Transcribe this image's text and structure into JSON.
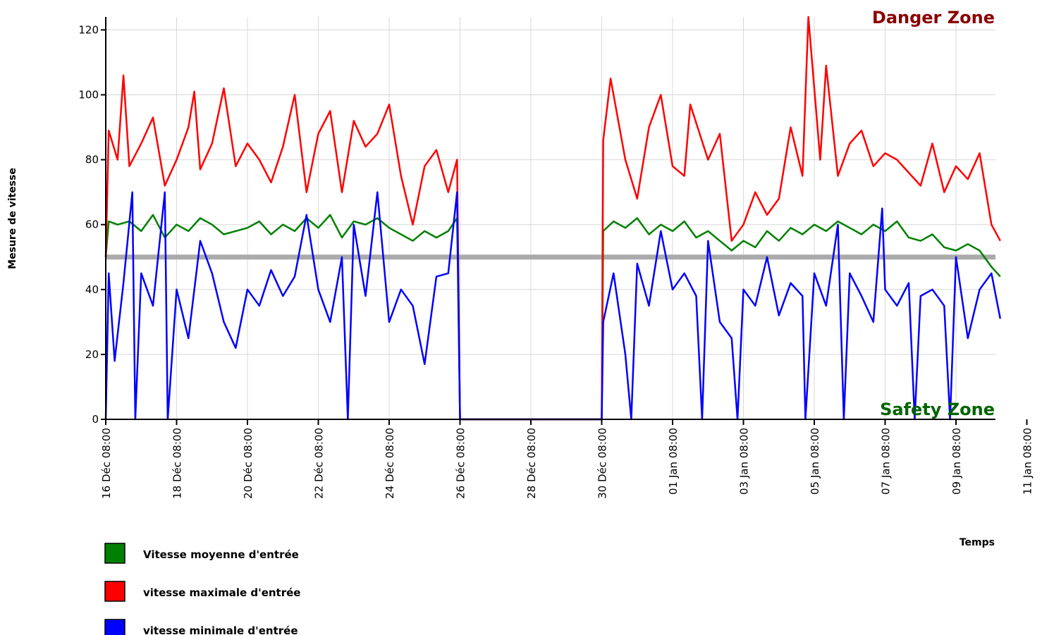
{
  "chart_data": {
    "type": "line",
    "xlabel": "Temps",
    "ylabel": "Mesure de vitesse",
    "ylim": [
      0,
      124
    ],
    "yticks": [
      0,
      20,
      40,
      60,
      80,
      100,
      120
    ],
    "xlim": [
      "2023-12-16 08:00",
      "2024-01-10 14:00"
    ],
    "xtick_labels": [
      "16 Déc 08:00",
      "18 Déc 08:00",
      "20 Déc 08:00",
      "22 Déc 08:00",
      "24 Déc 08:00",
      "26 Déc 08:00",
      "28 Déc 08:00",
      "30 Déc 08:00",
      "01 Jan 08:00",
      "03 Jan 08:00",
      "05 Jan 08:00",
      "07 Jan 08:00",
      "09 Jan 08:00",
      "11 Jan 08:00"
    ],
    "grid": true,
    "legend_position": "bottom-left",
    "reference_line": {
      "y": 50,
      "color": "#aaaaaa"
    },
    "zones": {
      "danger": "Danger Zone",
      "safety": "Safety Zone",
      "danger_color": "#8b0000",
      "safety_color": "#006400"
    },
    "series": [
      {
        "name": "Vitesse moyenne d'entrée",
        "color": "#008000",
        "points": [
          [
            "2023-12-16 08:00",
            50
          ],
          [
            "2023-12-16 10:00",
            61
          ],
          [
            "2023-12-16 16:00",
            60
          ],
          [
            "2023-12-17 00:00",
            61
          ],
          [
            "2023-12-17 08:00",
            58
          ],
          [
            "2023-12-17 16:00",
            63
          ],
          [
            "2023-12-18 00:00",
            56
          ],
          [
            "2023-12-18 08:00",
            60
          ],
          [
            "2023-12-18 16:00",
            58
          ],
          [
            "2023-12-19 00:00",
            62
          ],
          [
            "2023-12-19 08:00",
            60
          ],
          [
            "2023-12-19 16:00",
            57
          ],
          [
            "2023-12-20 00:00",
            58
          ],
          [
            "2023-12-20 08:00",
            59
          ],
          [
            "2023-12-20 16:00",
            61
          ],
          [
            "2023-12-21 00:00",
            57
          ],
          [
            "2023-12-21 08:00",
            60
          ],
          [
            "2023-12-21 16:00",
            58
          ],
          [
            "2023-12-22 00:00",
            62
          ],
          [
            "2023-12-22 08:00",
            59
          ],
          [
            "2023-12-22 16:00",
            63
          ],
          [
            "2023-12-23 00:00",
            56
          ],
          [
            "2023-12-23 08:00",
            61
          ],
          [
            "2023-12-23 16:00",
            60
          ],
          [
            "2023-12-24 00:00",
            62
          ],
          [
            "2023-12-24 08:00",
            59
          ],
          [
            "2023-12-24 16:00",
            57
          ],
          [
            "2023-12-25 00:00",
            55
          ],
          [
            "2023-12-25 08:00",
            58
          ],
          [
            "2023-12-25 16:00",
            56
          ],
          [
            "2023-12-26 00:00",
            58
          ],
          [
            "2023-12-26 06:00",
            62
          ],
          [
            "2023-12-26 08:00",
            0
          ],
          [
            "2023-12-30 08:00",
            0
          ],
          [
            "2023-12-30 09:00",
            58
          ],
          [
            "2023-12-30 16:00",
            61
          ],
          [
            "2023-12-31 00:00",
            59
          ],
          [
            "2023-12-31 08:00",
            62
          ],
          [
            "2023-12-31 16:00",
            57
          ],
          [
            "2024-01-01 00:00",
            60
          ],
          [
            "2024-01-01 08:00",
            58
          ],
          [
            "2024-01-01 16:00",
            61
          ],
          [
            "2024-01-02 00:00",
            56
          ],
          [
            "2024-01-02 08:00",
            58
          ],
          [
            "2024-01-02 16:00",
            55
          ],
          [
            "2024-01-03 00:00",
            52
          ],
          [
            "2024-01-03 08:00",
            55
          ],
          [
            "2024-01-03 16:00",
            53
          ],
          [
            "2024-01-04 00:00",
            58
          ],
          [
            "2024-01-04 08:00",
            55
          ],
          [
            "2024-01-04 16:00",
            59
          ],
          [
            "2024-01-05 00:00",
            57
          ],
          [
            "2024-01-05 08:00",
            60
          ],
          [
            "2024-01-05 16:00",
            58
          ],
          [
            "2024-01-06 00:00",
            61
          ],
          [
            "2024-01-06 08:00",
            59
          ],
          [
            "2024-01-06 16:00",
            57
          ],
          [
            "2024-01-07 00:00",
            60
          ],
          [
            "2024-01-07 08:00",
            58
          ],
          [
            "2024-01-07 16:00",
            61
          ],
          [
            "2024-01-08 00:00",
            56
          ],
          [
            "2024-01-08 08:00",
            55
          ],
          [
            "2024-01-08 16:00",
            57
          ],
          [
            "2024-01-09 00:00",
            53
          ],
          [
            "2024-01-09 08:00",
            52
          ],
          [
            "2024-01-09 16:00",
            54
          ],
          [
            "2024-01-10 00:00",
            52
          ],
          [
            "2024-01-10 08:00",
            47
          ],
          [
            "2024-01-10 14:00",
            44
          ]
        ]
      },
      {
        "name": "vitesse maximale d'entrée",
        "color": "#ff0000",
        "points": [
          [
            "2023-12-16 08:00",
            50
          ],
          [
            "2023-12-16 10:00",
            89
          ],
          [
            "2023-12-16 16:00",
            80
          ],
          [
            "2023-12-16 20:00",
            106
          ],
          [
            "2023-12-17 00:00",
            78
          ],
          [
            "2023-12-17 08:00",
            85
          ],
          [
            "2023-12-17 16:00",
            93
          ],
          [
            "2023-12-18 00:00",
            72
          ],
          [
            "2023-12-18 08:00",
            80
          ],
          [
            "2023-12-18 16:00",
            90
          ],
          [
            "2023-12-18 20:00",
            101
          ],
          [
            "2023-12-19 00:00",
            77
          ],
          [
            "2023-12-19 08:00",
            85
          ],
          [
            "2023-12-19 16:00",
            102
          ],
          [
            "2023-12-20 00:00",
            78
          ],
          [
            "2023-12-20 08:00",
            85
          ],
          [
            "2023-12-20 16:00",
            80
          ],
          [
            "2023-12-21 00:00",
            73
          ],
          [
            "2023-12-21 08:00",
            84
          ],
          [
            "2023-12-21 16:00",
            100
          ],
          [
            "2023-12-22 00:00",
            70
          ],
          [
            "2023-12-22 08:00",
            88
          ],
          [
            "2023-12-22 16:00",
            95
          ],
          [
            "2023-12-23 00:00",
            70
          ],
          [
            "2023-12-23 08:00",
            92
          ],
          [
            "2023-12-23 16:00",
            84
          ],
          [
            "2023-12-24 00:00",
            88
          ],
          [
            "2023-12-24 08:00",
            97
          ],
          [
            "2023-12-24 16:00",
            75
          ],
          [
            "2023-12-25 00:00",
            60
          ],
          [
            "2023-12-25 08:00",
            78
          ],
          [
            "2023-12-25 16:00",
            83
          ],
          [
            "2023-12-26 00:00",
            70
          ],
          [
            "2023-12-26 06:00",
            80
          ],
          [
            "2023-12-26 08:00",
            0
          ],
          [
            "2023-12-30 08:00",
            0
          ],
          [
            "2023-12-30 09:00",
            86
          ],
          [
            "2023-12-30 14:00",
            105
          ],
          [
            "2023-12-31 00:00",
            80
          ],
          [
            "2023-12-31 08:00",
            68
          ],
          [
            "2023-12-31 16:00",
            90
          ],
          [
            "2024-01-01 00:00",
            100
          ],
          [
            "2024-01-01 08:00",
            78
          ],
          [
            "2024-01-01 16:00",
            75
          ],
          [
            "2024-01-01 20:00",
            97
          ],
          [
            "2024-01-02 08:00",
            80
          ],
          [
            "2024-01-02 16:00",
            88
          ],
          [
            "2024-01-03 00:00",
            55
          ],
          [
            "2024-01-03 08:00",
            60
          ],
          [
            "2024-01-03 16:00",
            70
          ],
          [
            "2024-01-04 00:00",
            63
          ],
          [
            "2024-01-04 08:00",
            68
          ],
          [
            "2024-01-04 16:00",
            90
          ],
          [
            "2024-01-05 00:00",
            75
          ],
          [
            "2024-01-05 04:00",
            124
          ],
          [
            "2024-01-05 12:00",
            80
          ],
          [
            "2024-01-05 16:00",
            109
          ],
          [
            "2024-01-06 00:00",
            75
          ],
          [
            "2024-01-06 08:00",
            85
          ],
          [
            "2024-01-06 16:00",
            89
          ],
          [
            "2024-01-07 00:00",
            78
          ],
          [
            "2024-01-07 08:00",
            82
          ],
          [
            "2024-01-07 16:00",
            80
          ],
          [
            "2024-01-08 00:00",
            76
          ],
          [
            "2024-01-08 08:00",
            72
          ],
          [
            "2024-01-08 16:00",
            85
          ],
          [
            "2024-01-09 00:00",
            70
          ],
          [
            "2024-01-09 08:00",
            78
          ],
          [
            "2024-01-09 16:00",
            74
          ],
          [
            "2024-01-10 00:00",
            82
          ],
          [
            "2024-01-10 08:00",
            60
          ],
          [
            "2024-01-10 14:00",
            55
          ]
        ]
      },
      {
        "name": "vitesse minimale d'entrée",
        "color": "#0000ff",
        "points": [
          [
            "2023-12-16 08:00",
            0
          ],
          [
            "2023-12-16 10:00",
            45
          ],
          [
            "2023-12-16 14:00",
            18
          ],
          [
            "2023-12-16 20:00",
            42
          ],
          [
            "2023-12-17 02:00",
            70
          ],
          [
            "2023-12-17 04:00",
            0
          ],
          [
            "2023-12-17 08:00",
            45
          ],
          [
            "2023-12-17 16:00",
            35
          ],
          [
            "2023-12-18 00:00",
            70
          ],
          [
            "2023-12-18 02:00",
            0
          ],
          [
            "2023-12-18 08:00",
            40
          ],
          [
            "2023-12-18 16:00",
            25
          ],
          [
            "2023-12-19 00:00",
            55
          ],
          [
            "2023-12-19 08:00",
            45
          ],
          [
            "2023-12-19 16:00",
            30
          ],
          [
            "2023-12-20 00:00",
            22
          ],
          [
            "2023-12-20 08:00",
            40
          ],
          [
            "2023-12-20 16:00",
            35
          ],
          [
            "2023-12-21 00:00",
            46
          ],
          [
            "2023-12-21 08:00",
            38
          ],
          [
            "2023-12-21 16:00",
            44
          ],
          [
            "2023-12-22 00:00",
            63
          ],
          [
            "2023-12-22 08:00",
            40
          ],
          [
            "2023-12-22 16:00",
            30
          ],
          [
            "2023-12-23 00:00",
            50
          ],
          [
            "2023-12-23 04:00",
            0
          ],
          [
            "2023-12-23 08:00",
            60
          ],
          [
            "2023-12-23 16:00",
            38
          ],
          [
            "2023-12-24 00:00",
            70
          ],
          [
            "2023-12-24 08:00",
            30
          ],
          [
            "2023-12-24 16:00",
            40
          ],
          [
            "2023-12-25 00:00",
            35
          ],
          [
            "2023-12-25 08:00",
            17
          ],
          [
            "2023-12-25 16:00",
            44
          ],
          [
            "2023-12-26 00:00",
            45
          ],
          [
            "2023-12-26 06:00",
            70
          ],
          [
            "2023-12-26 08:00",
            0
          ],
          [
            "2023-12-30 08:00",
            0
          ],
          [
            "2023-12-30 09:00",
            30
          ],
          [
            "2023-12-30 16:00",
            45
          ],
          [
            "2023-12-31 00:00",
            20
          ],
          [
            "2023-12-31 04:00",
            0
          ],
          [
            "2023-12-31 08:00",
            48
          ],
          [
            "2023-12-31 16:00",
            35
          ],
          [
            "2024-01-01 00:00",
            58
          ],
          [
            "2024-01-01 08:00",
            40
          ],
          [
            "2024-01-01 16:00",
            45
          ],
          [
            "2024-01-02 00:00",
            38
          ],
          [
            "2024-01-02 04:00",
            0
          ],
          [
            "2024-01-02 08:00",
            55
          ],
          [
            "2024-01-02 16:00",
            30
          ],
          [
            "2024-01-03 00:00",
            25
          ],
          [
            "2024-01-03 04:00",
            0
          ],
          [
            "2024-01-03 08:00",
            40
          ],
          [
            "2024-01-03 16:00",
            35
          ],
          [
            "2024-01-04 00:00",
            50
          ],
          [
            "2024-01-04 08:00",
            32
          ],
          [
            "2024-01-04 16:00",
            42
          ],
          [
            "2024-01-05 00:00",
            38
          ],
          [
            "2024-01-05 02:00",
            0
          ],
          [
            "2024-01-05 08:00",
            45
          ],
          [
            "2024-01-05 16:00",
            35
          ],
          [
            "2024-01-06 00:00",
            60
          ],
          [
            "2024-01-06 04:00",
            0
          ],
          [
            "2024-01-06 08:00",
            45
          ],
          [
            "2024-01-06 16:00",
            38
          ],
          [
            "2024-01-07 00:00",
            30
          ],
          [
            "2024-01-07 06:00",
            65
          ],
          [
            "2024-01-07 08:00",
            40
          ],
          [
            "2024-01-07 16:00",
            35
          ],
          [
            "2024-01-08 00:00",
            42
          ],
          [
            "2024-01-08 04:00",
            0
          ],
          [
            "2024-01-08 08:00",
            38
          ],
          [
            "2024-01-08 16:00",
            40
          ],
          [
            "2024-01-09 00:00",
            35
          ],
          [
            "2024-01-09 04:00",
            0
          ],
          [
            "2024-01-09 08:00",
            50
          ],
          [
            "2024-01-09 16:00",
            25
          ],
          [
            "2024-01-10 00:00",
            40
          ],
          [
            "2024-01-10 08:00",
            45
          ],
          [
            "2024-01-10 14:00",
            31
          ]
        ]
      }
    ]
  }
}
